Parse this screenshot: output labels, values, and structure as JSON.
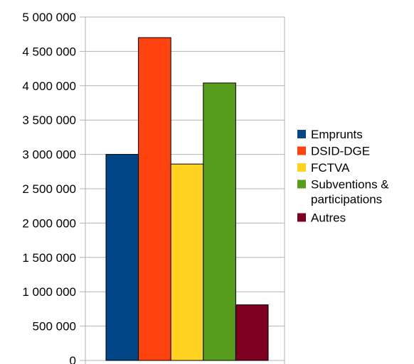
{
  "chart_data": {
    "type": "bar",
    "title": "",
    "xlabel": "",
    "ylabel": "",
    "ylim": [
      0,
      5000000
    ],
    "yticks": [
      0,
      500000,
      1000000,
      1500000,
      2000000,
      2500000,
      3000000,
      3500000,
      4000000,
      4500000,
      5000000
    ],
    "ytick_labels": [
      "0",
      "500 000",
      "1 000 000",
      "1 500 000",
      "2 000 000",
      "2 500 000",
      "3 000 000",
      "3 500 000",
      "4 000 000",
      "4 500 000",
      "5 000 000"
    ],
    "grid": true,
    "legend_position": "right",
    "series": [
      {
        "name": "Emprunts",
        "value": 3000000,
        "color": "#004586"
      },
      {
        "name": "DSID-DGE",
        "value": 4700000,
        "color": "#ff420e"
      },
      {
        "name": "FCTVA",
        "value": 2860000,
        "color": "#ffd320"
      },
      {
        "name": "Subventions & participations",
        "legend_lines": [
          "Subventions &",
          "participations"
        ],
        "value": 4040000,
        "color": "#579d1c"
      },
      {
        "name": "Autres",
        "value": 810000,
        "color": "#7e0021"
      }
    ]
  }
}
